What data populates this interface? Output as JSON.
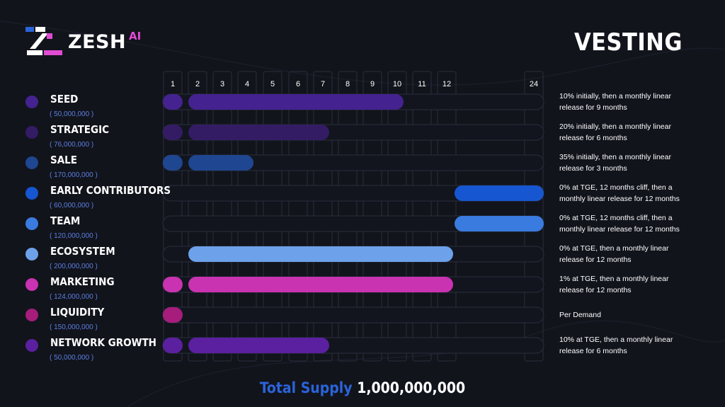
{
  "brand": {
    "name": "ZESH",
    "suffix": "AI"
  },
  "page": {
    "title": "VESTING"
  },
  "footer": {
    "label": "Total Supply",
    "value": "1,000,000,000"
  },
  "chart_data": {
    "type": "gantt",
    "months": [
      "1",
      "2",
      "3",
      "4",
      "5",
      "6",
      "7",
      "8",
      "9",
      "10",
      "11",
      "12",
      "24"
    ],
    "rows": [
      {
        "name": "SEED",
        "amount": "( 50,000,000 )",
        "color": "#44228f",
        "initial": true,
        "start": "2",
        "end": "10",
        "desc": [
          "10% initially, then a monthly linear",
          "release for 9 months"
        ]
      },
      {
        "name": "STRATEGIC",
        "amount": "( 76,000,000 )",
        "color": "#331c64",
        "initial": true,
        "start": "2",
        "end": "7",
        "desc": [
          "20% initially, then a monthly linear",
          "release for 6 months"
        ]
      },
      {
        "name": "SALE",
        "amount": "( 170,000,000 )",
        "color": "#1f4690",
        "initial": true,
        "start": "2",
        "end": "4",
        "desc": [
          "35% initially, then a monthly linear",
          "release for 3 months"
        ]
      },
      {
        "name": "EARLY CONTRIBUTORS",
        "amount": "( 60,000,000 )",
        "color": "#1656d0",
        "initial": false,
        "start": "12",
        "end": "24",
        "desc": [
          "0% at TGE, 12 months cliff,  then a",
          "monthly linear release for 12 months"
        ]
      },
      {
        "name": "TEAM",
        "amount": "( 120,000,000 )",
        "color": "#3a7be0",
        "initial": false,
        "start": "12",
        "end": "24",
        "desc": [
          "0% at TGE, 12 months cliff,  then a",
          "monthly linear release for 12 months"
        ]
      },
      {
        "name": "ECOSYSTEM",
        "amount": "( 200,000,000 )",
        "color": "#6da1ea",
        "initial": false,
        "start": "2",
        "end": "12",
        "desc": [
          "0% at TGE,  then a monthly linear",
          "release for 12 months"
        ]
      },
      {
        "name": "MARKETING",
        "amount": "( 124,000,000 )",
        "color": "#c932b0",
        "initial": true,
        "start": "2",
        "end": "12",
        "desc": [
          "1% at TGE,  then a monthly linear",
          "release for 12 months"
        ]
      },
      {
        "name": "LIQUIDITY",
        "amount": "( 150,000,000 )",
        "color": "#a61d7c",
        "initial": true,
        "start": null,
        "end": null,
        "desc": [
          "Per Demand"
        ]
      },
      {
        "name": "NETWORK GROWTH",
        "amount": "( 50,000,000 )",
        "color": "#5b20a0",
        "initial": true,
        "start": "2",
        "end": "7",
        "desc": [
          "10% at TGE,  then a monthly linear",
          "release for 6 months"
        ]
      }
    ]
  }
}
